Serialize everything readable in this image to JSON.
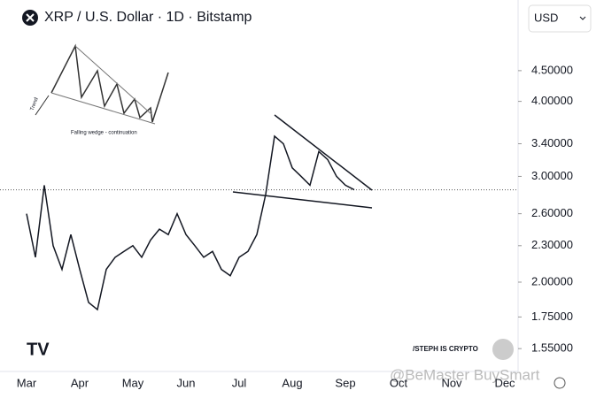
{
  "chart_data": {
    "type": "line",
    "title": "XRP / U.S. Dollar · 1D · Bitstamp",
    "currency": "USD",
    "inset_caption": "Falling wedge - continuation",
    "inset_label": "Trend",
    "author": "/STEPH IS CRYPTO",
    "watermark": "@BeMaster BuySmart",
    "logo": "TV",
    "color": "#131722",
    "log_scale": true,
    "categories": [
      "Mar",
      null,
      null,
      null,
      null,
      null,
      "Apr",
      null,
      null,
      null,
      null,
      null,
      "May",
      null,
      null,
      null,
      null,
      null,
      "Jun",
      null,
      null,
      null,
      null,
      null,
      "Jul",
      null,
      null,
      null,
      null,
      null,
      "Aug",
      null,
      null,
      null,
      null,
      null,
      "Sep",
      null,
      null,
      null,
      null,
      null,
      "Oct",
      null,
      null,
      null,
      null,
      null,
      "Nov",
      null,
      null,
      null,
      null,
      null,
      "Dec",
      null
    ],
    "values": [
      2.6,
      2.2,
      2.9,
      2.3,
      2.1,
      2.4,
      2.1,
      1.85,
      1.8,
      2.1,
      2.2,
      2.25,
      2.3,
      2.2,
      2.35,
      2.45,
      2.4,
      2.6,
      2.4,
      2.3,
      2.2,
      2.25,
      2.1,
      2.05,
      2.2,
      2.25,
      2.4,
      2.8,
      3.5,
      3.4,
      3.1,
      3.0,
      2.9,
      3.3,
      3.2,
      3.0,
      2.9,
      2.85,
      null,
      null,
      null,
      null,
      null,
      null,
      null,
      null,
      null,
      null,
      null,
      null,
      null,
      null,
      null,
      null,
      null,
      null
    ],
    "last_price": 2.85,
    "ylim": [
      1.42,
      5.9
    ],
    "yticks": [
      {
        "value": 1.55,
        "label": "1.55000"
      },
      {
        "value": 1.75,
        "label": "1.75000"
      },
      {
        "value": 2.0,
        "label": "2.00000"
      },
      {
        "value": 2.3,
        "label": "2.30000"
      },
      {
        "value": 2.6,
        "label": "2.60000"
      },
      {
        "value": 3.0,
        "label": "3.00000"
      },
      {
        "value": 3.4,
        "label": "3.40000"
      },
      {
        "value": 4.0,
        "label": "4.00000"
      },
      {
        "value": 4.5,
        "label": "4.50000"
      }
    ]
  }
}
